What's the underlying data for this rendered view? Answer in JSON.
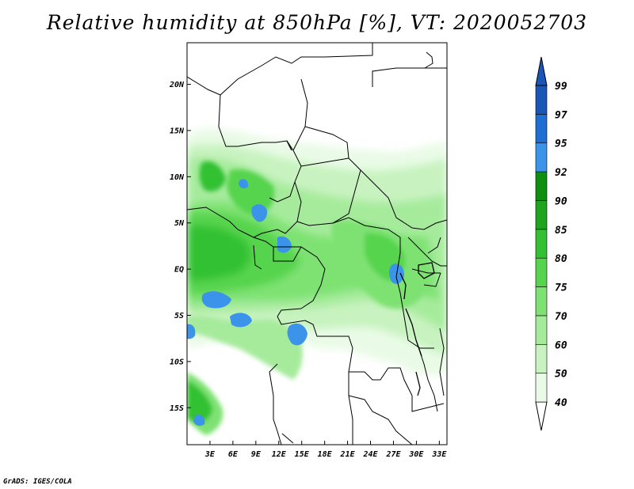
{
  "title": "Relative humidity at 850hPa [%], VT: 2020052703",
  "credit": "GrADS: IGES/COLA",
  "map": {
    "lat_range": [
      -19,
      24.5
    ],
    "lon_range": [
      0,
      34
    ],
    "lat_ticks": [
      {
        "value": 20,
        "label": "20N"
      },
      {
        "value": 15,
        "label": "15N"
      },
      {
        "value": 10,
        "label": "10N"
      },
      {
        "value": 5,
        "label": "5N"
      },
      {
        "value": 0,
        "label": "EQ"
      },
      {
        "value": -5,
        "label": "5S"
      },
      {
        "value": -10,
        "label": "10S"
      },
      {
        "value": -15,
        "label": "15S"
      }
    ],
    "lon_ticks": [
      {
        "value": 3,
        "label": "3E"
      },
      {
        "value": 6,
        "label": "6E"
      },
      {
        "value": 9,
        "label": "9E"
      },
      {
        "value": 12,
        "label": "12E"
      },
      {
        "value": 15,
        "label": "15E"
      },
      {
        "value": 18,
        "label": "18E"
      },
      {
        "value": 21,
        "label": "21E"
      },
      {
        "value": 24,
        "label": "24E"
      },
      {
        "value": 27,
        "label": "27E"
      },
      {
        "value": 30,
        "label": "30E"
      },
      {
        "value": 33,
        "label": "33E"
      }
    ]
  },
  "colorbar": {
    "levels": [
      "40",
      "50",
      "60",
      "70",
      "75",
      "80",
      "85",
      "90",
      "92",
      "95",
      "97",
      "99"
    ],
    "colors": [
      "#ffffff",
      "#e9fbe6",
      "#c8f3c0",
      "#a6eb9c",
      "#7ee272",
      "#56d44d",
      "#33c133",
      "#1ea51e",
      "#0f8f0f",
      "#3b93ea",
      "#1f6ed4",
      "#1a55b8"
    ]
  }
}
